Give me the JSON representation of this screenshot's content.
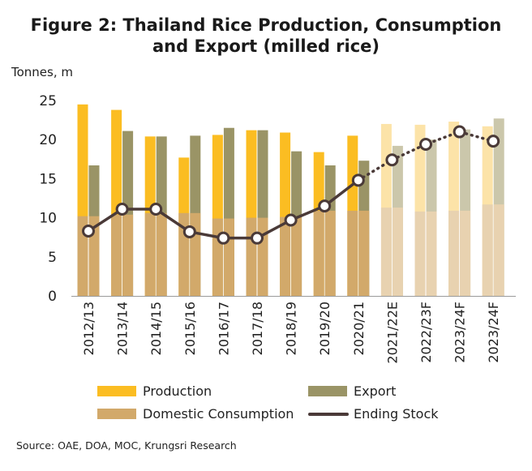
{
  "title_line1": "Figure 2: Thailand Rice Production, Consumption",
  "title_line2": "and Export (milled rice)",
  "source": "Source: OAE, DOA, MOC, Krungsri Research",
  "colors": {
    "production": "#fbbd22",
    "export": "#9a9466",
    "domestic": "#d2a96a",
    "stock": "#4a3a38",
    "production_forecast": "#fce3a8",
    "export_forecast": "#cbc7ab",
    "domestic_forecast": "#e8d2b0"
  },
  "chart_data": {
    "type": "bar",
    "ylabel": "Tonnes, m",
    "ylim": [
      0,
      25
    ],
    "yticks": [
      0,
      5,
      10,
      15,
      20,
      25
    ],
    "categories": [
      "2012/13",
      "2013/14",
      "2014/15",
      "2015/16",
      "2016/17",
      "2017/18",
      "2018/19",
      "2019/20",
      "2020/21",
      "2021/22E",
      "2022/23F",
      "2023/24F",
      "2023/24F"
    ],
    "forecast_from_index": 9,
    "series": [
      {
        "name": "Production",
        "kind": "bar",
        "values": [
          24.5,
          23.8,
          20.4,
          17.7,
          20.6,
          21.2,
          20.9,
          18.4,
          20.5,
          22.0,
          21.9,
          22.3,
          21.7
        ]
      },
      {
        "name": "Export",
        "kind": "bar",
        "values": [
          16.7,
          21.1,
          20.4,
          20.5,
          21.5,
          21.2,
          18.5,
          16.7,
          17.3,
          19.2,
          20.0,
          21.3,
          22.7
        ]
      },
      {
        "name": "Domestic Consumption",
        "kind": "bar-overlay",
        "values": [
          10.2,
          10.4,
          10.6,
          10.6,
          9.9,
          10.0,
          10.1,
          10.9,
          10.9,
          11.3,
          10.8,
          10.9,
          11.7
        ]
      },
      {
        "name": "Ending Stock",
        "kind": "line",
        "values": [
          8.3,
          11.1,
          11.1,
          8.2,
          7.4,
          7.4,
          9.7,
          11.5,
          14.8,
          17.4,
          19.4,
          21.0,
          19.8
        ]
      }
    ],
    "legend": {
      "production": "Production",
      "export": "Export",
      "domestic": "Domestic Consumption",
      "stock": "Ending Stock"
    }
  }
}
